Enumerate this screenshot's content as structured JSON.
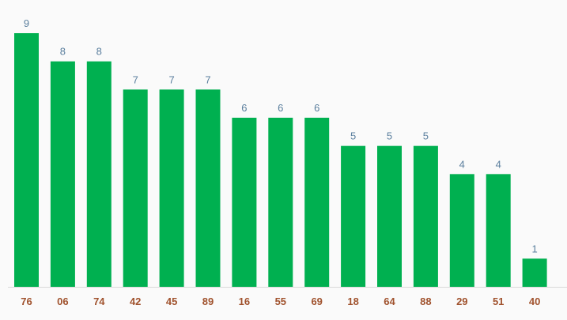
{
  "chart_data": {
    "type": "bar",
    "categories": [
      "76",
      "06",
      "74",
      "42",
      "45",
      "89",
      "16",
      "55",
      "69",
      "18",
      "64",
      "88",
      "29",
      "51",
      "40"
    ],
    "values": [
      9,
      8,
      8,
      7,
      7,
      7,
      6,
      6,
      6,
      5,
      5,
      5,
      4,
      4,
      1
    ],
    "title": "",
    "xlabel": "",
    "ylabel": "",
    "ylim": [
      0,
      9
    ],
    "grid": false,
    "data_labels": true,
    "colors": {
      "bar": "#00b050",
      "value_label": "#5b7f9e",
      "category_label": "#a0522d",
      "axis": "#d9d9d9",
      "background": "#fafafa"
    }
  }
}
